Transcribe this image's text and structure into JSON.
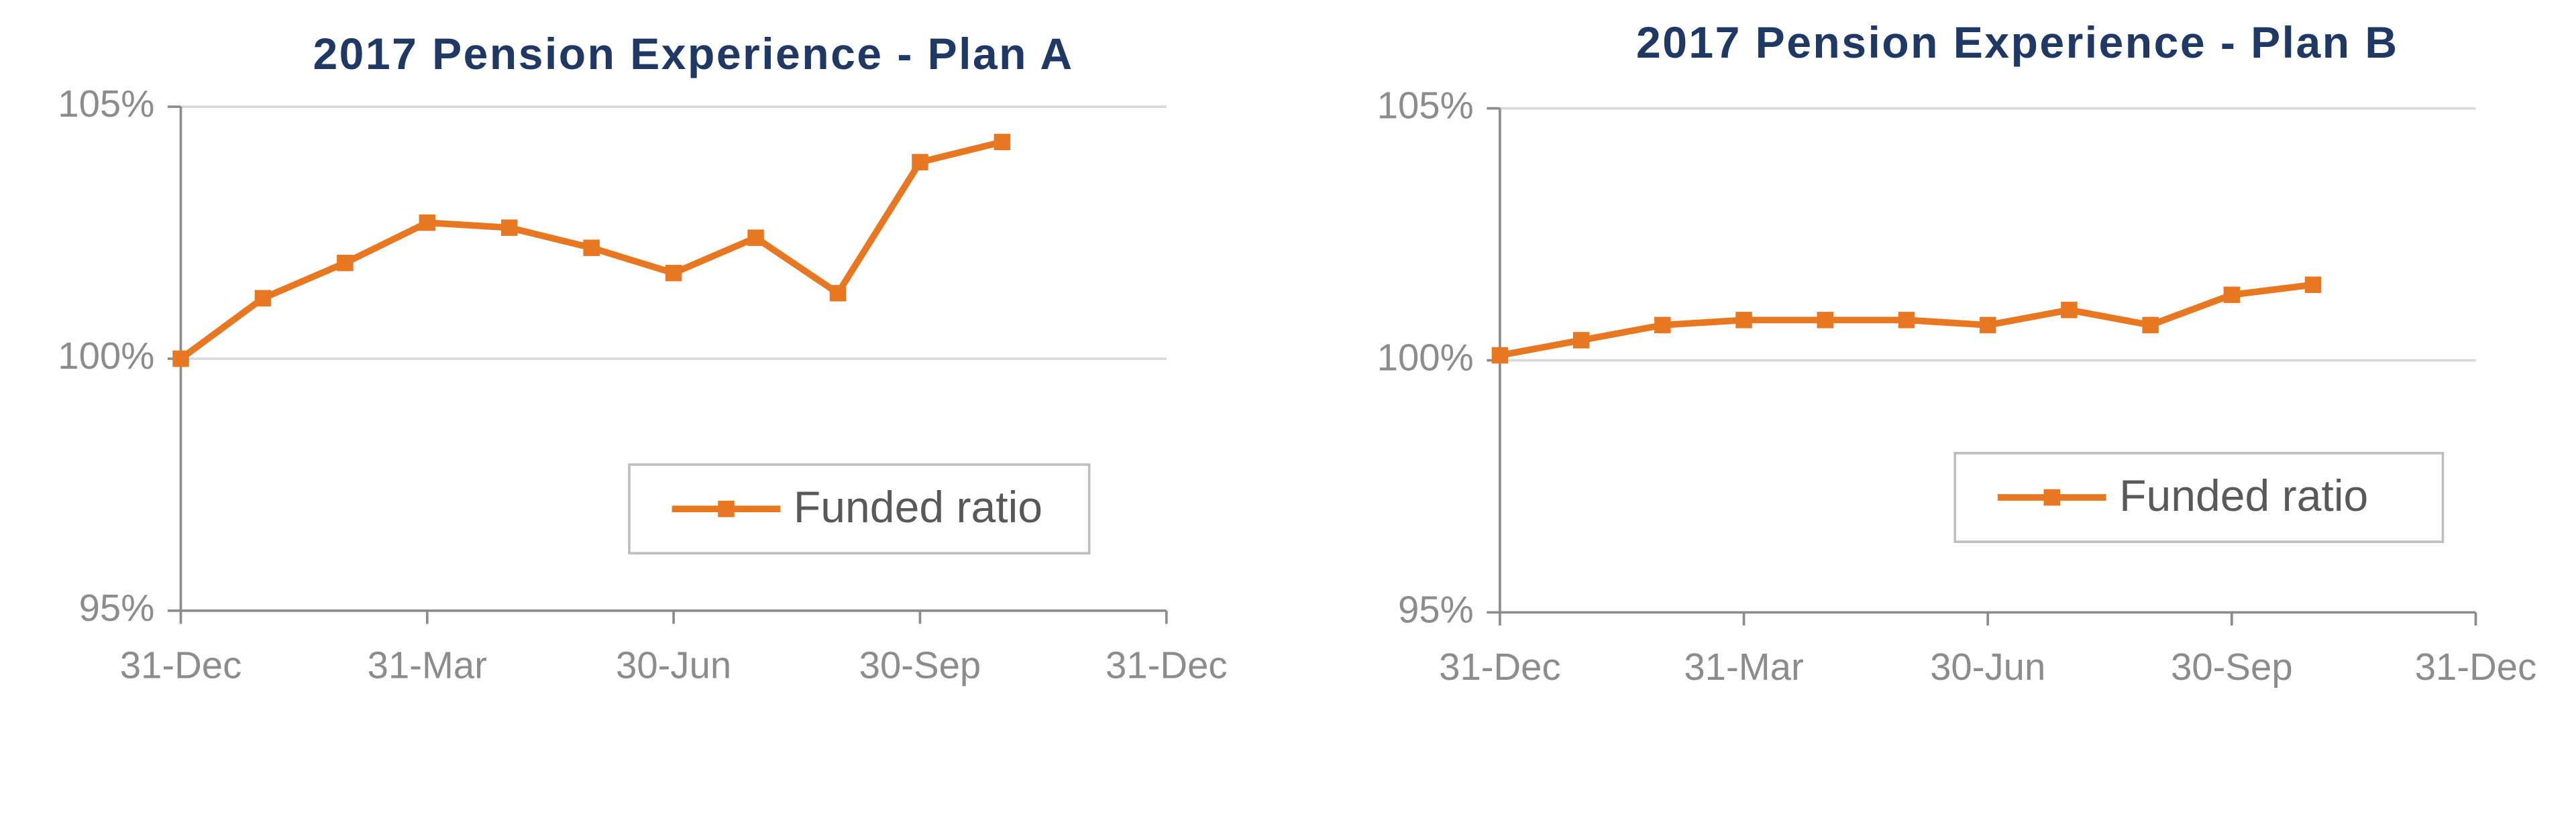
{
  "chart_data": [
    {
      "type": "line",
      "title": "2017 Pension Experience - Plan A",
      "x": [
        0,
        1,
        2,
        3,
        4,
        5,
        6,
        7,
        8,
        9,
        10
      ],
      "xlim": [
        0,
        12
      ],
      "xticks": [
        {
          "value": 0,
          "label": "31-Dec"
        },
        {
          "value": 3,
          "label": "31-Mar"
        },
        {
          "value": 6,
          "label": "30-Jun"
        },
        {
          "value": 9,
          "label": "30-Sep"
        },
        {
          "value": 12,
          "label": "31-Dec"
        }
      ],
      "ylim": [
        95,
        105
      ],
      "yticks": [
        {
          "value": 95,
          "label": "95%"
        },
        {
          "value": 100,
          "label": "100%"
        },
        {
          "value": 105,
          "label": "105%"
        }
      ],
      "grid": true,
      "legend": "lower right",
      "series": [
        {
          "name": "Funded ratio",
          "color": "#e87722",
          "values": [
            100.0,
            101.2,
            101.9,
            102.7,
            102.6,
            102.2,
            101.7,
            102.4,
            101.3,
            103.9,
            104.3
          ]
        }
      ]
    },
    {
      "type": "line",
      "title": "2017 Pension Experience - Plan B",
      "x": [
        0,
        1,
        2,
        3,
        4,
        5,
        6,
        7,
        8,
        9,
        10
      ],
      "xlim": [
        0,
        12
      ],
      "xticks": [
        {
          "value": 0,
          "label": "31-Dec"
        },
        {
          "value": 3,
          "label": "31-Mar"
        },
        {
          "value": 6,
          "label": "30-Jun"
        },
        {
          "value": 9,
          "label": "30-Sep"
        },
        {
          "value": 12,
          "label": "31-Dec"
        }
      ],
      "ylim": [
        95,
        105
      ],
      "yticks": [
        {
          "value": 95,
          "label": "95%"
        },
        {
          "value": 100,
          "label": "100%"
        },
        {
          "value": 105,
          "label": "105%"
        }
      ],
      "grid": true,
      "legend": "lower right",
      "series": [
        {
          "name": "Funded ratio",
          "color": "#e87722",
          "values": [
            100.1,
            100.4,
            100.7,
            100.8,
            100.8,
            100.8,
            100.7,
            101.0,
            100.7,
            101.3,
            101.5
          ]
        }
      ]
    }
  ]
}
